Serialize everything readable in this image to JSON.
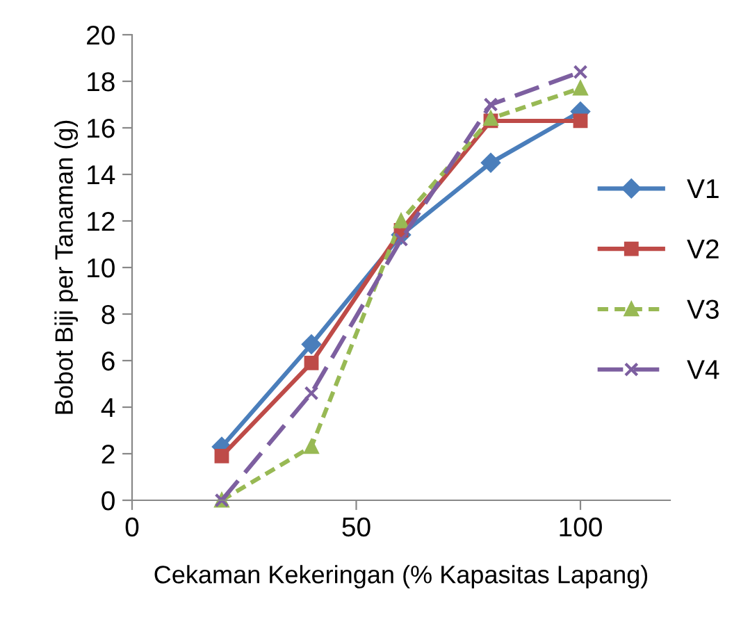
{
  "chart_data": {
    "type": "line",
    "xlabel": "Cekaman Kekeringan (% Kapasitas Lapang)",
    "ylabel": "Bobot Biji per Tanaman (g)",
    "x": [
      20,
      40,
      60,
      80,
      100
    ],
    "series": [
      {
        "name": "V1",
        "color": "#4a7ebb",
        "values": [
          2.3,
          6.7,
          11.4,
          14.5,
          16.7
        ],
        "marker": "diamond",
        "line_style": "solid"
      },
      {
        "name": "V2",
        "color": "#be4b48",
        "values": [
          1.9,
          5.9,
          11.6,
          16.3,
          16.3
        ],
        "marker": "square",
        "line_style": "solid"
      },
      {
        "name": "V3",
        "color": "#98b954",
        "values": [
          0,
          2.3,
          12.0,
          16.4,
          17.7
        ],
        "marker": "triangle",
        "line_style": "dotted"
      },
      {
        "name": "V4",
        "color": "#7d5fa0",
        "values": [
          0,
          4.6,
          11.2,
          17.0,
          18.4
        ],
        "marker": "cross",
        "line_style": "dashed"
      }
    ],
    "xlim": [
      0,
      120
    ],
    "xticks": [
      0,
      50,
      100
    ],
    "ylim": [
      0,
      20
    ],
    "yticks": [
      0,
      2,
      4,
      6,
      8,
      10,
      12,
      14,
      16,
      18,
      20
    ],
    "grid": false,
    "legend": "right"
  }
}
